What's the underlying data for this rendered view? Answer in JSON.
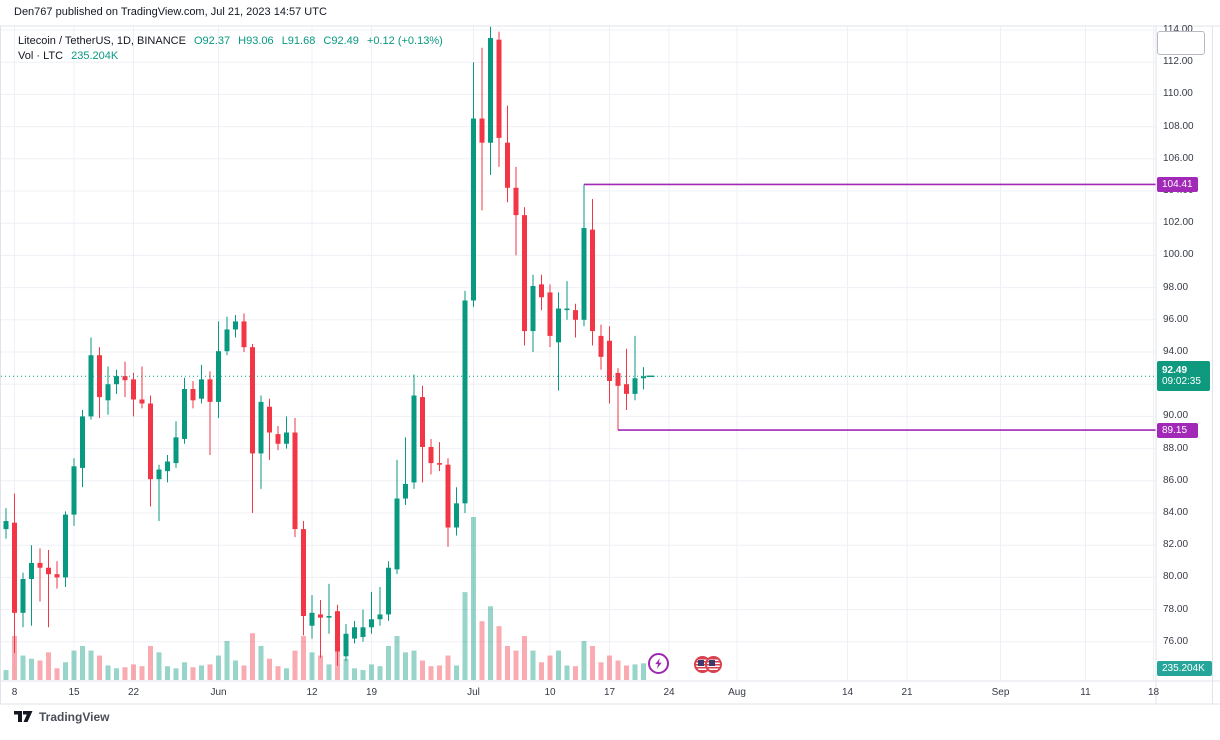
{
  "published_bar": {
    "text": "Den767 published on TradingView.com, Jul 21, 2023 14:57 UTC"
  },
  "legend": {
    "title": "Litecoin / TetherUS, 1D, BINANCE",
    "open_text": "O92.37",
    "high_text": "H93.06",
    "low_text": "L91.68",
    "close_text": "C92.49",
    "change_text": "+0.12 (+0.13%)",
    "volume_label": "Vol · LTC",
    "volume_value": "235.204K"
  },
  "price_axis": {
    "visible_labels": [
      "114.00",
      "112.00",
      "110.00",
      "108.00",
      "106.00",
      "104.00",
      "102.00",
      "100.00",
      "98.00",
      "96.00",
      "94.00",
      "90.00",
      "88.00",
      "86.00",
      "84.00",
      "82.00",
      "80.00",
      "78.00",
      "76.00"
    ],
    "upper_line_badge": "104.41",
    "lower_line_badge": "89.15",
    "current_badge": {
      "price": "92.49",
      "countdown": "09:02:35"
    },
    "volume_badge": "235.204K"
  },
  "time_axis": {
    "labels": [
      {
        "text": "8",
        "index": 1
      },
      {
        "text": "15",
        "index": 8
      },
      {
        "text": "22",
        "index": 15
      },
      {
        "text": "Jun",
        "index": 25
      },
      {
        "text": "12",
        "index": 36
      },
      {
        "text": "19",
        "index": 43
      },
      {
        "text": "Jul",
        "index": 55
      },
      {
        "text": "10",
        "index": 64
      },
      {
        "text": "17",
        "index": 71
      },
      {
        "text": "24",
        "index": 78
      },
      {
        "text": "Aug",
        "index": 86
      },
      {
        "text": "14",
        "index": 99
      },
      {
        "text": "21",
        "index": 106
      },
      {
        "text": "Sep",
        "index": 117
      },
      {
        "text": "11",
        "index": 127
      },
      {
        "text": "18",
        "index": 135
      }
    ]
  },
  "markers": {
    "flash": "lightning-event-marker",
    "flags": "us-flag-economic-event-markers"
  },
  "footer": {
    "brand": "TradingView"
  },
  "colors": {
    "up": "#089981",
    "down": "#F23645",
    "up_volume": "rgba(8,153,129,0.42)",
    "down_volume": "rgba(242,54,69,0.42)",
    "price_line": "#A228B8",
    "grid": "#EEF0F6",
    "border": "#E0E3EB",
    "current_line": "#089981",
    "axis_text": "#363A45",
    "badge_current": "#0F9A80",
    "badge_purple": "#A228B8",
    "badge_volume": "#26A69A"
  },
  "chart_data": {
    "type": "candlestick",
    "title": "Litecoin / TetherUS, 1D, BINANCE",
    "interval": "1D",
    "start_date": "2023-05-07",
    "ylim": [
      74.0,
      114.5
    ],
    "price_grid_step": 2,
    "grid": true,
    "candles_ohlc": [
      [
        83.0,
        84.3,
        82.4,
        83.5
      ],
      [
        83.4,
        85.2,
        75.3,
        77.8
      ],
      [
        77.8,
        80.3,
        76.9,
        79.9
      ],
      [
        79.9,
        82.0,
        77.0,
        80.9
      ],
      [
        80.9,
        81.8,
        78.5,
        80.6
      ],
      [
        80.6,
        81.7,
        76.9,
        80.2
      ],
      [
        80.2,
        81.0,
        79.3,
        80.0
      ],
      [
        80.0,
        84.1,
        79.4,
        83.9
      ],
      [
        83.9,
        87.4,
        83.2,
        86.9
      ],
      [
        86.8,
        90.4,
        85.6,
        90.0
      ],
      [
        90.0,
        94.9,
        89.8,
        93.8
      ],
      [
        93.8,
        94.3,
        89.9,
        91.2
      ],
      [
        91.0,
        93.1,
        90.1,
        92.0
      ],
      [
        92.0,
        92.9,
        91.4,
        92.5
      ],
      [
        92.5,
        93.4,
        91.2,
        92.25
      ],
      [
        92.3,
        92.7,
        90.0,
        91.05
      ],
      [
        91.05,
        93.1,
        90.5,
        90.8
      ],
      [
        90.8,
        91.3,
        84.4,
        86.1
      ],
      [
        86.1,
        87.0,
        83.5,
        86.7
      ],
      [
        86.6,
        87.6,
        85.9,
        87.2
      ],
      [
        87.1,
        89.7,
        86.8,
        88.7
      ],
      [
        88.6,
        92.4,
        88.3,
        91.7
      ],
      [
        91.7,
        92.2,
        90.5,
        91.0
      ],
      [
        91.1,
        93.2,
        90.8,
        92.3
      ],
      [
        92.3,
        92.8,
        87.6,
        90.9
      ],
      [
        90.9,
        95.9,
        89.9,
        94.05
      ],
      [
        94.05,
        96.2,
        93.8,
        95.4
      ],
      [
        95.4,
        96.3,
        94.9,
        95.9
      ],
      [
        95.9,
        96.4,
        94.0,
        94.3
      ],
      [
        94.3,
        94.5,
        84.0,
        87.7
      ],
      [
        87.7,
        91.3,
        85.5,
        90.9
      ],
      [
        90.6,
        91.1,
        87.3,
        89.0
      ],
      [
        88.9,
        89.4,
        87.9,
        88.3
      ],
      [
        88.3,
        90.0,
        88.0,
        89.0
      ],
      [
        89.0,
        89.9,
        82.5,
        83.0
      ],
      [
        83.0,
        83.5,
        76.4,
        77.6
      ],
      [
        77.0,
        78.9,
        76.2,
        77.8
      ],
      [
        77.7,
        78.6,
        75.0,
        77.5
      ],
      [
        77.5,
        79.6,
        76.5,
        77.6
      ],
      [
        77.9,
        78.3,
        74.5,
        75.4
      ],
      [
        75.1,
        77.1,
        74.8,
        76.5
      ],
      [
        76.2,
        77.3,
        75.9,
        76.9
      ],
      [
        76.3,
        78.0,
        76.0,
        76.9
      ],
      [
        76.9,
        79.1,
        76.5,
        77.4
      ],
      [
        77.4,
        79.4,
        77.0,
        77.7
      ],
      [
        77.7,
        81.0,
        77.3,
        80.6
      ],
      [
        80.5,
        87.3,
        80.2,
        84.9
      ],
      [
        84.9,
        88.7,
        84.5,
        85.8
      ],
      [
        85.9,
        92.6,
        85.5,
        91.3
      ],
      [
        91.2,
        91.9,
        85.9,
        88.1
      ],
      [
        88.1,
        88.6,
        86.4,
        87.1
      ],
      [
        87.1,
        88.4,
        86.6,
        87.0
      ],
      [
        87.0,
        87.4,
        81.9,
        83.1
      ],
      [
        83.1,
        85.6,
        82.6,
        84.6
      ],
      [
        84.6,
        97.8,
        84.0,
        97.2
      ],
      [
        97.2,
        112.0,
        96.8,
        108.5
      ],
      [
        108.5,
        112.9,
        102.8,
        107.0
      ],
      [
        107.0,
        114.2,
        105.0,
        113.5
      ],
      [
        113.4,
        113.9,
        105.5,
        107.3
      ],
      [
        107.0,
        109.3,
        103.3,
        104.2
      ],
      [
        104.2,
        105.5,
        100.0,
        102.5
      ],
      [
        102.5,
        103.0,
        94.4,
        95.3
      ],
      [
        95.3,
        98.8,
        94.0,
        98.1
      ],
      [
        98.2,
        98.8,
        96.6,
        97.4
      ],
      [
        97.7,
        98.2,
        94.3,
        95.0
      ],
      [
        94.6,
        97.7,
        91.6,
        96.7
      ],
      [
        96.6,
        98.4,
        96.0,
        96.7
      ],
      [
        96.6,
        97.0,
        94.9,
        96.0
      ],
      [
        96.0,
        104.41,
        95.6,
        101.7
      ],
      [
        101.6,
        103.5,
        94.4,
        95.3
      ],
      [
        95.0,
        95.7,
        92.9,
        93.7
      ],
      [
        94.7,
        95.6,
        90.8,
        92.2
      ],
      [
        92.7,
        93.0,
        89.15,
        91.9
      ],
      [
        92.0,
        94.2,
        90.4,
        91.4
      ],
      [
        91.4,
        95.0,
        91.0,
        92.37
      ],
      [
        92.37,
        93.06,
        91.68,
        92.49
      ]
    ],
    "volumes_k": [
      140,
      620,
      345,
      300,
      275,
      390,
      165,
      250,
      415,
      480,
      415,
      345,
      205,
      165,
      180,
      220,
      195,
      480,
      390,
      195,
      165,
      250,
      180,
      205,
      220,
      345,
      550,
      275,
      205,
      660,
      480,
      300,
      195,
      165,
      415,
      620,
      390,
      345,
      220,
      415,
      300,
      165,
      140,
      220,
      195,
      480,
      620,
      390,
      415,
      275,
      195,
      205,
      345,
      205,
      1240,
      2300,
      830,
      1040,
      760,
      480,
      415,
      620,
      415,
      250,
      345,
      415,
      205,
      195,
      550,
      480,
      250,
      345,
      275,
      205,
      220,
      235.204
    ],
    "price_lines": [
      {
        "value": 104.41,
        "from_index": 68
      },
      {
        "value": 89.15,
        "from_index": 72
      }
    ],
    "current_price": 92.49,
    "last_ohlc": {
      "open": 92.37,
      "high": 93.06,
      "low": 91.68,
      "close": 92.49
    },
    "change": "+0.12 (+0.13%)",
    "last_volume": "235.204K"
  }
}
